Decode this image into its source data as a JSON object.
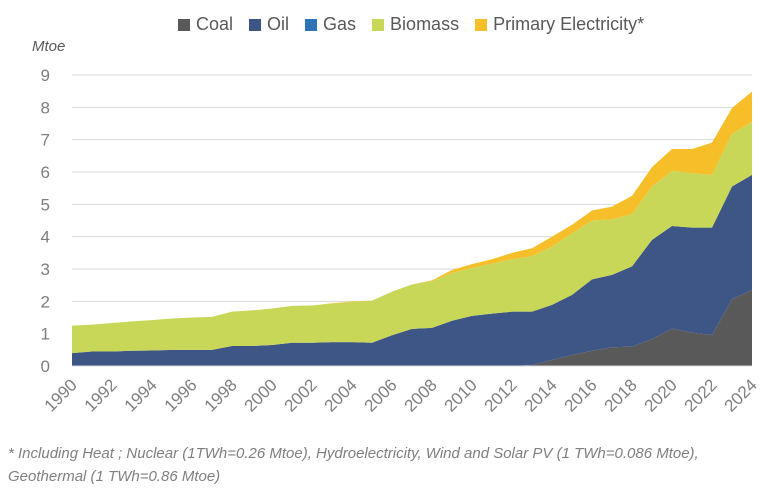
{
  "chart_data": {
    "type": "area",
    "stacked": true,
    "title": "",
    "xlabel": "",
    "ylabel": "Mtoe",
    "ylim": [
      0,
      9
    ],
    "yticks": [
      "0",
      "1",
      "2",
      "3",
      "4",
      "5",
      "6",
      "7",
      "8",
      "9"
    ],
    "grid": true,
    "legend_position": "top",
    "x": [
      1990,
      1991,
      1992,
      1993,
      1994,
      1995,
      1996,
      1997,
      1998,
      1999,
      2000,
      2001,
      2002,
      2003,
      2004,
      2005,
      2006,
      2007,
      2008,
      2009,
      2010,
      2011,
      2012,
      2013,
      2014,
      2015,
      2016,
      2017,
      2018,
      2019,
      2020,
      2021,
      2022,
      2023,
      2024
    ],
    "xticks": [
      "1990",
      "1992",
      "1994",
      "1996",
      "1998",
      "2000",
      "2002",
      "2004",
      "2006",
      "2008",
      "2010",
      "2012",
      "2014",
      "2016",
      "2018",
      "2020",
      "2022",
      "2024"
    ],
    "series": [
      {
        "name": "Coal",
        "color": "#595959",
        "values": [
          0,
          0,
          0,
          0,
          0,
          0,
          0,
          0,
          0,
          0,
          0,
          0,
          0,
          0,
          0,
          0,
          0,
          0,
          0,
          0,
          0,
          0,
          0,
          0.03,
          0.19,
          0.34,
          0.47,
          0.58,
          0.6,
          0.83,
          1.16,
          1.03,
          0.96,
          2.06,
          2.35
        ]
      },
      {
        "name": "Oil",
        "color": "#3e5686",
        "values": [
          0.4,
          0.45,
          0.45,
          0.47,
          0.48,
          0.5,
          0.5,
          0.5,
          0.62,
          0.62,
          0.65,
          0.72,
          0.72,
          0.74,
          0.74,
          0.72,
          0.95,
          1.15,
          1.18,
          1.4,
          1.55,
          1.62,
          1.68,
          1.65,
          1.7,
          1.86,
          2.21,
          2.24,
          2.48,
          3.07,
          3.17,
          3.25,
          3.32,
          3.49,
          3.56
        ]
      },
      {
        "name": "Gas",
        "color": "#2e75b6",
        "values": [
          0,
          0,
          0,
          0,
          0,
          0,
          0,
          0,
          0,
          0,
          0,
          0,
          0,
          0,
          0,
          0,
          0,
          0,
          0,
          0,
          0,
          0,
          0,
          0,
          0,
          0,
          0,
          0,
          0,
          0,
          0,
          0,
          0,
          0,
          0
        ]
      },
      {
        "name": "Biomass",
        "color": "#c9d758",
        "values": [
          0.85,
          0.83,
          0.88,
          0.91,
          0.94,
          0.97,
          1.0,
          1.02,
          1.06,
          1.1,
          1.13,
          1.14,
          1.15,
          1.19,
          1.24,
          1.3,
          1.35,
          1.37,
          1.44,
          1.48,
          1.48,
          1.55,
          1.62,
          1.72,
          1.8,
          1.9,
          1.82,
          1.72,
          1.62,
          1.65,
          1.71,
          1.68,
          1.63,
          1.63,
          1.64
        ]
      },
      {
        "name": "Primary Electricity*",
        "color": "#f6bf2a",
        "values": [
          0,
          0,
          0,
          0,
          0,
          0,
          0,
          0,
          0,
          0,
          0,
          0,
          0,
          0.01,
          0.02,
          0,
          0,
          0,
          0.03,
          0.09,
          0.12,
          0.13,
          0.2,
          0.24,
          0.31,
          0.27,
          0.31,
          0.39,
          0.56,
          0.6,
          0.67,
          0.75,
          1.0,
          0.8,
          0.94
        ]
      }
    ],
    "footnote": [
      "* Including Heat ; Nuclear (1TWh=0.26 Mtoe), Hydroelectricity, Wind and Solar PV (1 TWh=0.086 Mtoe),",
      "Geothermal (1 TWh=0.86 Mtoe)"
    ]
  }
}
